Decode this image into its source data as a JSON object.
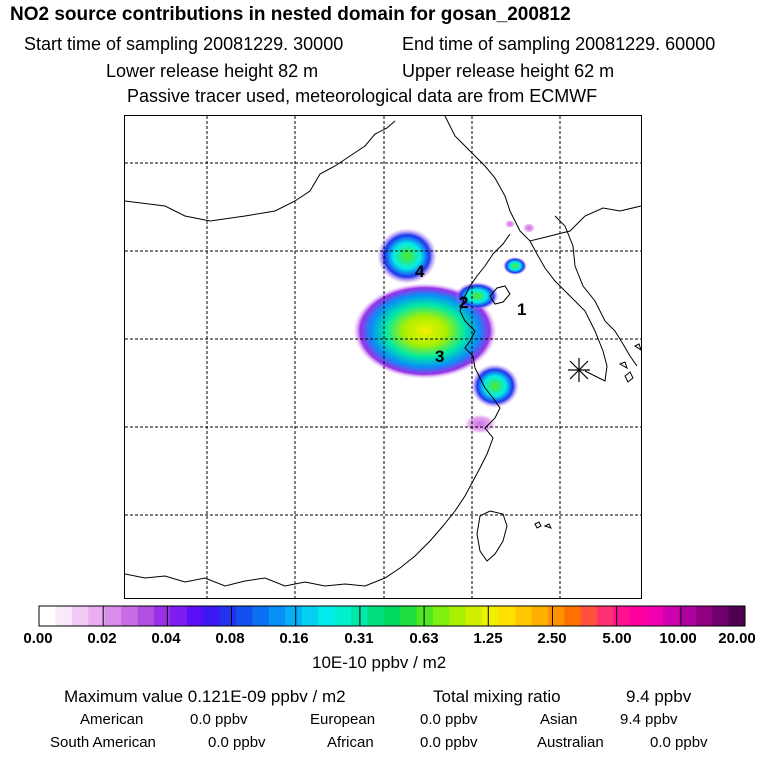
{
  "header": {
    "title": "NO2 source contributions in nested domain for gosan_200812",
    "start_time": "Start time of sampling 20081229. 30000",
    "end_time": "End time of sampling 20081229. 60000",
    "lower_release": "Lower release height   82 m",
    "upper_release": "Upper release height   62 m",
    "tracer_note": "Passive tracer used, meteorological data are from ECMWF"
  },
  "map": {
    "source_labels": [
      "1",
      "2",
      "3",
      "4"
    ],
    "receptor_marker": "gosan-receptor-icon"
  },
  "colorbar": {
    "tick_labels": [
      "0.00",
      "0.02",
      "0.04",
      "0.08",
      "0.16",
      "0.31",
      "0.63",
      "1.25",
      "2.50",
      "5.00",
      "10.00",
      "20.00"
    ],
    "unit": "10E-10 ppbv / m2",
    "colors": [
      "#ffffff",
      "#fbe8fb",
      "#f3ccf6",
      "#e8aef0",
      "#d98de9",
      "#c86ee5",
      "#b24fe3",
      "#9a30e8",
      "#7c1ef0",
      "#5a10f4",
      "#3a18f4",
      "#2034f0",
      "#1450f0",
      "#0a70f4",
      "#0890f6",
      "#06b0f6",
      "#04d0f4",
      "#02ecec",
      "#00f0d0",
      "#00e8a8",
      "#00e080",
      "#00d860",
      "#20e040",
      "#50e820",
      "#80f010",
      "#a8f000",
      "#d0f000",
      "#f0f000",
      "#ffe000",
      "#ffc800",
      "#ffb000",
      "#ff9000",
      "#ff7000",
      "#ff5040",
      "#ff3070",
      "#ff1090",
      "#ff00a0",
      "#f000b0",
      "#d000b0",
      "#b000a0",
      "#900080",
      "#700070",
      "#500050"
    ]
  },
  "stats": {
    "max_value": "Maximum value  0.121E-09 ppbv / m2",
    "total_mixing": "Total mixing ratio",
    "total_value": "9.4 ppbv",
    "regions": [
      {
        "name": "American",
        "value": "0.0 ppbv"
      },
      {
        "name": "European",
        "value": "0.0 ppbv"
      },
      {
        "name": "Asian",
        "value": "9.4 ppbv"
      },
      {
        "name": "South American",
        "value": "0.0 ppbv"
      },
      {
        "name": "African",
        "value": "0.0 ppbv"
      },
      {
        "name": "Australian",
        "value": "0.0 ppbv"
      }
    ]
  }
}
